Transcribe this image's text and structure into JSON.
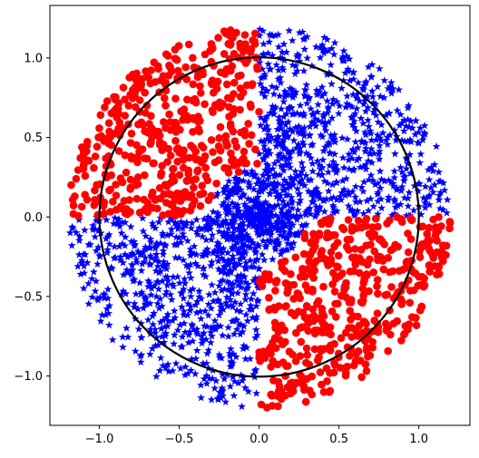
{
  "chart_data": {
    "type": "scatter",
    "title": "",
    "xlabel": "",
    "ylabel": "",
    "xlim": [
      -1.31,
      1.32
    ],
    "ylim": [
      -1.31,
      1.33
    ],
    "grid": false,
    "legend": null,
    "x_ticks": [
      -1.0,
      -0.5,
      0.0,
      0.5,
      1.0
    ],
    "x_tick_labels": [
      "−1.0",
      "−0.5",
      "0.0",
      "0.5",
      "1.0"
    ],
    "y_ticks": [
      -1.0,
      -0.5,
      0.0,
      0.5,
      1.0
    ],
    "y_tick_labels": [
      "−1.0",
      "−0.5",
      "0.0",
      "0.5",
      "1.0"
    ],
    "overlays": [
      {
        "shape": "circle",
        "center": [
          0,
          0
        ],
        "radius": 1.0,
        "color": "#000000"
      }
    ],
    "series": [
      {
        "marker": "star",
        "color": "#0000ff",
        "distribution": "points within radius 1.2 of the origin outside the red quadrant wedges, denser near the center",
        "count": 1700
      },
      {
        "marker": "circle",
        "color": "#ff0000",
        "distribution": "points with radius 0.3–1.2 in the upper-left (x<0, y>0) and lower-right (x>0, y<0) quadrants",
        "count": 950
      }
    ]
  }
}
